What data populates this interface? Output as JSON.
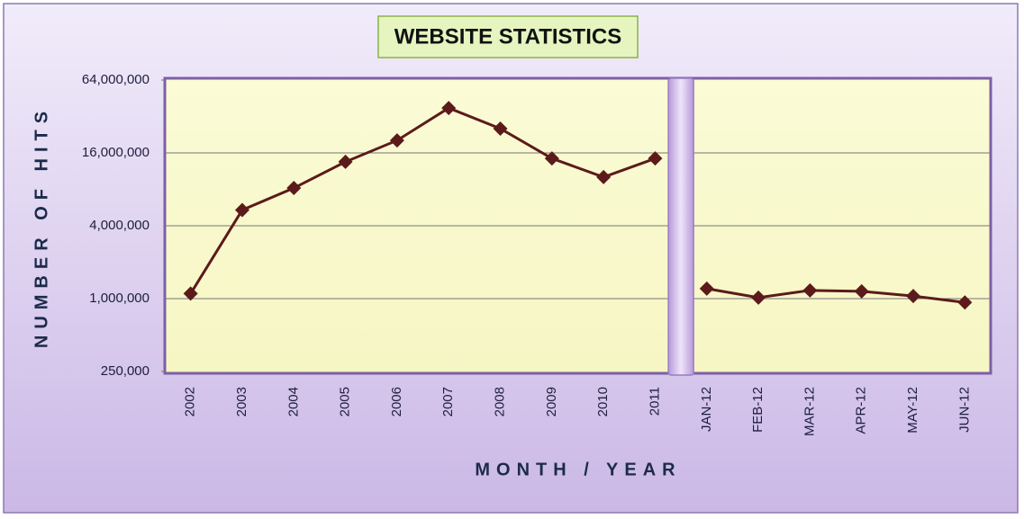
{
  "chart_data": {
    "type": "line",
    "title": "WEBSITE STATISTICS",
    "x_label": "MONTH / YEAR",
    "y_label": "NUMBER OF HITS",
    "categories": [
      "2002",
      "2003",
      "2004",
      "2005",
      "2006",
      "2007",
      "2008",
      "2009",
      "2010",
      "2011",
      "JAN-12",
      "FEB-12",
      "MAR-12",
      "APR-12",
      "MAY-12",
      "JUN-12"
    ],
    "series": [
      {
        "color": "#5c1a1a",
        "values": [
          1100000,
          5400000,
          8200000,
          13500000,
          20300000,
          37600000,
          25400000,
          14400000,
          10100000,
          14400000,
          null,
          null,
          null,
          null,
          null,
          null
        ]
      },
      {
        "color": "#5c1a1a",
        "values": [
          null,
          null,
          null,
          null,
          null,
          null,
          null,
          null,
          null,
          null,
          1210000,
          1020000,
          1170000,
          1150000,
          1050000,
          930000
        ]
      }
    ],
    "ylim": [
      250000,
      64000000
    ],
    "yticks": [
      {
        "value": 250000,
        "label": "250,000"
      },
      {
        "value": 1000000,
        "label": "1,000,000"
      },
      {
        "value": 4000000,
        "label": "4,000,000"
      },
      {
        "value": 16000000,
        "label": "16,000,000"
      },
      {
        "value": 64000000,
        "label": "64,000,000"
      }
    ],
    "log_scale": true,
    "grid": true
  }
}
